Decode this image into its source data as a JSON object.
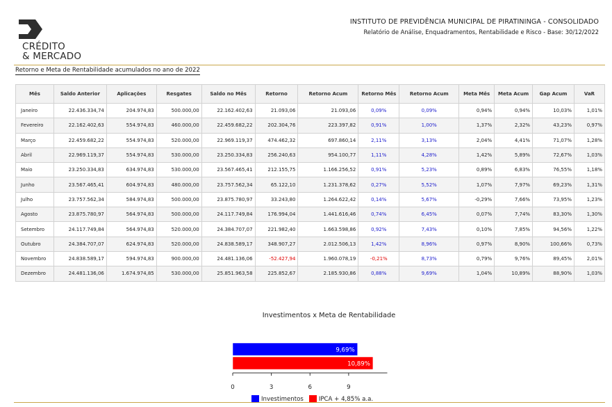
{
  "logo": {
    "line1": "CRÉDITO",
    "line2": "& MERCADO"
  },
  "header": {
    "institution": "INSTITUTO DE PREVIDÊNCIA MUNICIPAL DE PIRATININGA - CONSOLIDADO",
    "subtitle": "Relatório de Análise, Enquadramentos, Rentabilidade e Risco - Base: 30/12/2022"
  },
  "section_title": "Retorno e Meta de Rentabilidade acumulados no ano de 2022",
  "table": {
    "columns": [
      "Mês",
      "Saldo Anterior",
      "Aplicações",
      "Resgates",
      "Saldo no Mês",
      "Retorno",
      "Retorno Acum",
      "Retorno Mês",
      "Retorno Acum",
      "Meta Mês",
      "Meta Acum",
      "Gap Acum",
      "VaR"
    ],
    "rows": [
      [
        "Janeiro",
        "22.436.334,74",
        "204.974,83",
        "500.000,00",
        "22.162.402,63",
        "21.093,06",
        "21.093,06",
        "0,09%",
        "0,09%",
        "0,94%",
        "0,94%",
        "10,03%",
        "1,01%"
      ],
      [
        "Fevereiro",
        "22.162.402,63",
        "554.974,83",
        "460.000,00",
        "22.459.682,22",
        "202.304,76",
        "223.397,82",
        "0,91%",
        "1,00%",
        "1,37%",
        "2,32%",
        "43,23%",
        "0,97%"
      ],
      [
        "Março",
        "22.459.682,22",
        "554.974,83",
        "520.000,00",
        "22.969.119,37",
        "474.462,32",
        "697.860,14",
        "2,11%",
        "3,13%",
        "2,04%",
        "4,41%",
        "71,07%",
        "1,28%"
      ],
      [
        "Abril",
        "22.969.119,37",
        "554.974,83",
        "530.000,00",
        "23.250.334,83",
        "256.240,63",
        "954.100,77",
        "1,11%",
        "4,28%",
        "1,42%",
        "5,89%",
        "72,67%",
        "1,03%"
      ],
      [
        "Maio",
        "23.250.334,83",
        "634.974,83",
        "530.000,00",
        "23.567.465,41",
        "212.155,75",
        "1.166.256,52",
        "0,91%",
        "5,23%",
        "0,89%",
        "6,83%",
        "76,55%",
        "1,18%"
      ],
      [
        "Junho",
        "23.567.465,41",
        "604.974,83",
        "480.000,00",
        "23.757.562,34",
        "65.122,10",
        "1.231.378,62",
        "0,27%",
        "5,52%",
        "1,07%",
        "7,97%",
        "69,23%",
        "1,31%"
      ],
      [
        "Julho",
        "23.757.562,34",
        "584.974,83",
        "500.000,00",
        "23.875.780,97",
        "33.243,80",
        "1.264.622,42",
        "0,14%",
        "5,67%",
        "-0,29%",
        "7,66%",
        "73,95%",
        "1,23%"
      ],
      [
        "Agosto",
        "23.875.780,97",
        "564.974,83",
        "500.000,00",
        "24.117.749,84",
        "176.994,04",
        "1.441.616,46",
        "0,74%",
        "6,45%",
        "0,07%",
        "7,74%",
        "83,30%",
        "1,30%"
      ],
      [
        "Setembro",
        "24.117.749,84",
        "564.974,83",
        "520.000,00",
        "24.384.707,07",
        "221.982,40",
        "1.663.598,86",
        "0,92%",
        "7,43%",
        "0,10%",
        "7,85%",
        "94,56%",
        "1,22%"
      ],
      [
        "Outubro",
        "24.384.707,07",
        "624.974,83",
        "520.000,00",
        "24.838.589,17",
        "348.907,27",
        "2.012.506,13",
        "1,42%",
        "8,96%",
        "0,97%",
        "8,90%",
        "100,66%",
        "0,73%"
      ],
      [
        "Novembro",
        "24.838.589,17",
        "594.974,83",
        "900.000,00",
        "24.481.136,06",
        "-52.427,94",
        "1.960.078,19",
        "-0,21%",
        "8,73%",
        "0,79%",
        "9,76%",
        "89,45%",
        "2,01%"
      ],
      [
        "Dezembro",
        "24.481.136,06",
        "1.674.974,85",
        "530.000,00",
        "25.851.963,58",
        "225.852,67",
        "2.185.930,86",
        "0,88%",
        "9,69%",
        "1,04%",
        "10,89%",
        "88,90%",
        "1,03%"
      ]
    ]
  },
  "colors": {
    "blue_text": "#1a1acc",
    "red_text": "#e00000",
    "gold": "#c9a64a"
  },
  "chart_data": {
    "type": "bar",
    "orientation": "horizontal",
    "title": "Investimentos x Meta de Rentabilidade",
    "series": [
      {
        "name": "Investimentos",
        "value": 9.69,
        "label": "9,69%",
        "color": "#0000ff"
      },
      {
        "name": "IPCA + 4,85% a.a.",
        "value": 10.89,
        "label": "10,89%",
        "color": "#ff0000"
      }
    ],
    "x_ticks": [
      0,
      3,
      6,
      9
    ],
    "xlim": [
      0,
      12
    ],
    "grid": false,
    "legend": "bottom"
  }
}
